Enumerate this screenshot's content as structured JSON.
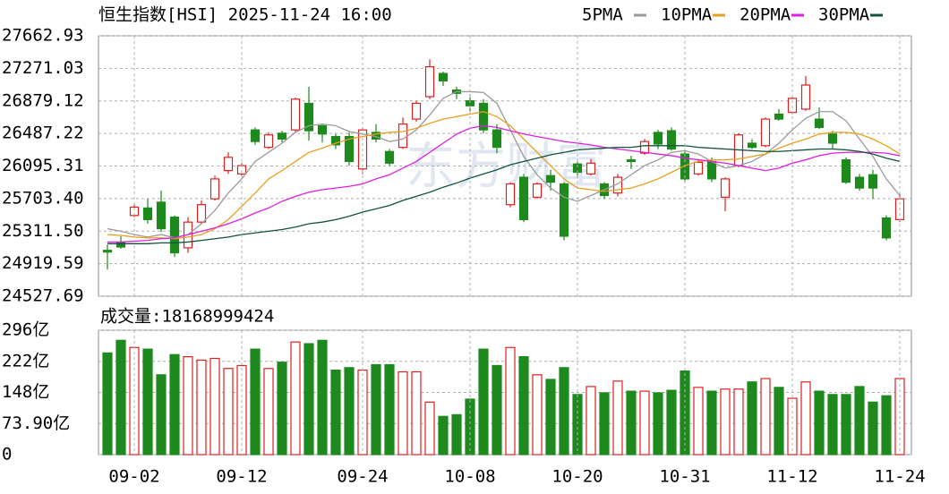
{
  "chart_data": [
    {
      "type": "candlestick",
      "title": "恒生指数[HSI] 2025-11-24 16:00",
      "watermark": "东方财富",
      "up_color": "#e02020",
      "down_color": "#1e8a1e",
      "ylim": [
        24527.69,
        27662.93
      ],
      "yticks": [
        27662.93,
        27271.03,
        26879.12,
        26487.22,
        26095.31,
        {
          "value": 25703.4,
          "label": "25703.40"
        },
        {
          "value": 25311.5,
          "label": "25311.50"
        },
        24919.59,
        24527.69
      ],
      "grid": true,
      "open": [
        25080,
        25180,
        25500,
        25590,
        25660,
        25480,
        25110,
        25420,
        25700,
        26040,
        26000,
        26530,
        26320,
        26490,
        26530,
        26850,
        26580,
        26450,
        26450,
        26060,
        26500,
        26270,
        26320,
        26660,
        26930,
        27210,
        27010,
        26880,
        26850,
        26530,
        25630,
        25960,
        25720,
        25980,
        25880,
        26120,
        26000,
        25880,
        25770,
        26170,
        26250,
        26500,
        26520,
        26240,
        26000,
        26150,
        25720,
        26100,
        26370,
        26340,
        26720,
        26740,
        26780,
        26660,
        26480,
        26170,
        25960,
        25990,
        25470,
        25450
      ],
      "high": [
        25150,
        25250,
        25640,
        25700,
        25800,
        25500,
        25480,
        25680,
        25980,
        26260,
        26130,
        26560,
        26500,
        26520,
        26920,
        27050,
        26600,
        26480,
        26500,
        26560,
        26600,
        26300,
        26680,
        26880,
        27380,
        27230,
        27050,
        26960,
        26900,
        26600,
        25900,
        26000,
        25900,
        26050,
        25900,
        26150,
        26180,
        25900,
        26000,
        26220,
        26420,
        26530,
        26560,
        26280,
        26180,
        26200,
        25960,
        26490,
        26420,
        26680,
        26780,
        26930,
        27180,
        26800,
        26520,
        26200,
        26000,
        26050,
        25500,
        25760
      ],
      "low": [
        24850,
        25100,
        25480,
        25400,
        25300,
        25000,
        25050,
        25400,
        25680,
        26000,
        25980,
        26350,
        26300,
        26380,
        26500,
        26400,
        26380,
        26300,
        26100,
        26000,
        26380,
        26100,
        26300,
        26630,
        26900,
        27060,
        26900,
        26750,
        26490,
        26250,
        25600,
        25420,
        25700,
        25800,
        25200,
        25950,
        25980,
        25700,
        25730,
        26060,
        26230,
        26300,
        26280,
        25900,
        25980,
        25900,
        25550,
        26080,
        26300,
        26320,
        26640,
        26720,
        26760,
        26540,
        26300,
        25880,
        25800,
        25700,
        25200,
        25420
      ],
      "close": [
        25060,
        25120,
        25600,
        25450,
        25340,
        25050,
        25420,
        25630,
        25940,
        26200,
        26100,
        26390,
        26470,
        26420,
        26900,
        26520,
        26480,
        26350,
        26150,
        26530,
        26420,
        26130,
        26600,
        26850,
        27290,
        27120,
        26970,
        26820,
        26530,
        26320,
        25880,
        25450,
        25880,
        25900,
        25250,
        26020,
        26130,
        25740,
        25960,
        26150,
        26390,
        26360,
        26300,
        25940,
        26140,
        25940,
        25940,
        26470,
        26320,
        26660,
        26660,
        26910,
        27070,
        26560,
        26370,
        25900,
        25830,
        25830,
        25230,
        25700
      ],
      "series": [
        {
          "name": "5PMA",
          "color": "#9a9a9a",
          "values": [
            25340,
            25310,
            25270,
            25240,
            25270,
            25230,
            25270,
            25400,
            25560,
            25770,
            25940,
            26150,
            26260,
            26370,
            26500,
            26580,
            26600,
            26580,
            26510,
            26480,
            26450,
            26390,
            26420,
            26530,
            26710,
            26910,
            26990,
            26990,
            26980,
            26850,
            26530,
            26210,
            25990,
            25830,
            25720,
            25670,
            25740,
            25810,
            25880,
            25990,
            26100,
            26170,
            26260,
            26280,
            26240,
            26150,
            26070,
            26100,
            26150,
            26240,
            26370,
            26530,
            26670,
            26750,
            26750,
            26640,
            26420,
            26210,
            25940,
            25740
          ]
        },
        {
          "name": "10PMA",
          "color": "#e8a020",
          "values": [
            25270,
            25260,
            25240,
            25230,
            25230,
            25220,
            25240,
            25270,
            25340,
            25450,
            25610,
            25770,
            25940,
            26040,
            26150,
            26260,
            26310,
            26370,
            26420,
            26450,
            26480,
            26500,
            26510,
            26550,
            26610,
            26660,
            26690,
            26720,
            26750,
            26690,
            26580,
            26420,
            26260,
            26100,
            25940,
            25830,
            25810,
            25790,
            25810,
            25830,
            25880,
            25940,
            26020,
            26100,
            26150,
            26170,
            26170,
            26180,
            26210,
            26240,
            26310,
            26370,
            26420,
            26480,
            26500,
            26500,
            26480,
            26420,
            26340,
            26240
          ]
        },
        {
          "name": "20PMA",
          "color": "#e020e0",
          "values": [
            25180,
            25180,
            25190,
            25200,
            25220,
            25230,
            25270,
            25310,
            25350,
            25400,
            25460,
            25530,
            25590,
            25670,
            25730,
            25780,
            25810,
            25830,
            25850,
            25880,
            25940,
            25990,
            26070,
            26150,
            26260,
            26370,
            26480,
            26550,
            26580,
            26560,
            26520,
            26480,
            26450,
            26420,
            26390,
            26370,
            26350,
            26320,
            26300,
            26280,
            26260,
            26240,
            26220,
            26190,
            26170,
            26150,
            26130,
            26100,
            26070,
            26040,
            26070,
            26130,
            26170,
            26220,
            26250,
            26260,
            26260,
            26260,
            26250,
            26220
          ]
        },
        {
          "name": "30PMA",
          "color": "#12543a",
          "values": [
            25160,
            25160,
            25160,
            25160,
            25170,
            25170,
            25180,
            25200,
            25220,
            25240,
            25270,
            25290,
            25310,
            25330,
            25360,
            25400,
            25420,
            25450,
            25490,
            25540,
            25580,
            25620,
            25680,
            25730,
            25780,
            25840,
            25890,
            25950,
            26000,
            26050,
            26110,
            26150,
            26190,
            26230,
            26260,
            26290,
            26300,
            26310,
            26320,
            26320,
            26340,
            26340,
            26340,
            26340,
            26320,
            26310,
            26300,
            26290,
            26280,
            26270,
            26270,
            26280,
            26290,
            26300,
            26300,
            26290,
            26270,
            26240,
            26190,
            26150
          ]
        }
      ]
    },
    {
      "type": "bar",
      "title": "成交量:18168999424",
      "ylim": [
        0,
        296
      ],
      "yticks": [
        {
          "value": 296,
          "label": "296亿"
        },
        {
          "value": 222,
          "label": "222亿"
        },
        {
          "value": 148,
          "label": "148亿"
        },
        {
          "value": 73.9,
          "label": "73.90亿"
        },
        0
      ],
      "grid": true,
      "categories": [
        null,
        null,
        "09-02",
        null,
        null,
        null,
        null,
        null,
        null,
        null,
        "09-12",
        null,
        null,
        null,
        null,
        null,
        null,
        null,
        null,
        "09-24",
        null,
        null,
        null,
        null,
        null,
        null,
        null,
        "10-08",
        null,
        null,
        null,
        null,
        null,
        null,
        null,
        "10-20",
        null,
        null,
        null,
        null,
        null,
        null,
        null,
        "10-31",
        null,
        null,
        null,
        null,
        null,
        null,
        null,
        "11-12",
        null,
        null,
        null,
        null,
        null,
        null,
        null,
        "11-24"
      ],
      "values": [
        242,
        272,
        255,
        251,
        190,
        238,
        233,
        225,
        229,
        205,
        212,
        251,
        205,
        220,
        268,
        264,
        272,
        201,
        207,
        201,
        214,
        214,
        197,
        197,
        125,
        91,
        95,
        132,
        251,
        212,
        255,
        233,
        190,
        179,
        207,
        143,
        162,
        147,
        175,
        151,
        151,
        147,
        153,
        199,
        160,
        151,
        156,
        156,
        173,
        181,
        160,
        134,
        173,
        151,
        143,
        143,
        162,
        125,
        140,
        181
      ]
    }
  ]
}
